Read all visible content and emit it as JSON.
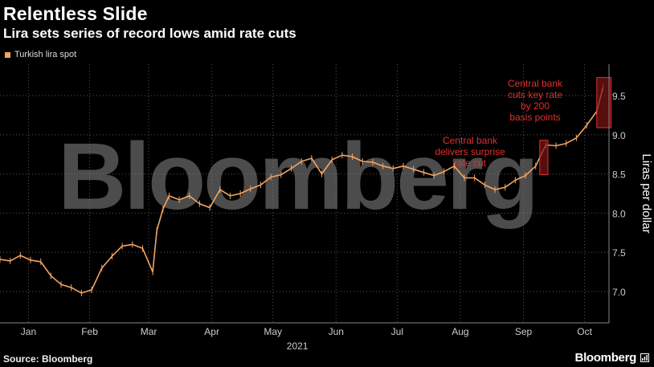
{
  "header": {
    "title": "Relentless Slide",
    "subtitle": "Lira sets series of record lows amid rate cuts"
  },
  "footer": {
    "source": "Source: Bloomberg",
    "brand": "Bloomberg",
    "brand_icon": "chart-window-icon"
  },
  "watermark": "Bloomberg",
  "colors": {
    "series": "#f4a460",
    "annotation": "#e03030",
    "annotation_fill": "#7a1414",
    "background": "#000000"
  },
  "chart_data": {
    "type": "line",
    "title": "Relentless Slide",
    "subtitle": "Lira sets series of record lows amid rate cuts",
    "ylabel": "Liras per dollar",
    "xlabel": "2021",
    "ylim": [
      6.6,
      9.9
    ],
    "yticks": [
      "7.0",
      "7.5",
      "8.0",
      "8.5",
      "9.0",
      "9.5"
    ],
    "y_axis_side": "right",
    "grid": true,
    "legend": "top-left",
    "x_range": [
      "2021-01-01",
      "2021-10-27"
    ],
    "xticks": [
      {
        "label": "Jan",
        "date": "2021-01-15"
      },
      {
        "label": "Feb",
        "date": "2021-02-14"
      },
      {
        "label": "Mar",
        "date": "2021-03-15"
      },
      {
        "label": "Apr",
        "date": "2021-04-15"
      },
      {
        "label": "May",
        "date": "2021-05-15"
      },
      {
        "label": "Jun",
        "date": "2021-06-15"
      },
      {
        "label": "Jul",
        "date": "2021-07-15"
      },
      {
        "label": "Aug",
        "date": "2021-08-15"
      },
      {
        "label": "Sep",
        "date": "2021-09-15"
      },
      {
        "label": "Oct",
        "date": "2021-10-15"
      }
    ],
    "series": [
      {
        "name": "Turkish lira spot",
        "x": [
          "2021-01-01",
          "2021-01-06",
          "2021-01-11",
          "2021-01-16",
          "2021-01-21",
          "2021-01-26",
          "2021-01-31",
          "2021-02-05",
          "2021-02-10",
          "2021-02-15",
          "2021-02-20",
          "2021-02-25",
          "2021-03-02",
          "2021-03-07",
          "2021-03-12",
          "2021-03-17",
          "2021-03-19",
          "2021-03-22",
          "2021-03-25",
          "2021-03-30",
          "2021-04-04",
          "2021-04-09",
          "2021-04-14",
          "2021-04-19",
          "2021-04-24",
          "2021-04-29",
          "2021-05-04",
          "2021-05-09",
          "2021-05-14",
          "2021-05-19",
          "2021-05-24",
          "2021-05-29",
          "2021-06-03",
          "2021-06-08",
          "2021-06-13",
          "2021-06-18",
          "2021-06-23",
          "2021-06-28",
          "2021-07-03",
          "2021-07-08",
          "2021-07-13",
          "2021-07-18",
          "2021-07-23",
          "2021-07-28",
          "2021-08-02",
          "2021-08-07",
          "2021-08-12",
          "2021-08-17",
          "2021-08-22",
          "2021-08-27",
          "2021-09-01",
          "2021-09-06",
          "2021-09-11",
          "2021-09-16",
          "2021-09-21",
          "2021-09-26",
          "2021-10-01",
          "2021-10-06",
          "2021-10-11",
          "2021-10-16",
          "2021-10-21",
          "2021-10-24"
        ],
        "values": [
          7.41,
          7.39,
          7.46,
          7.4,
          7.38,
          7.2,
          7.09,
          7.05,
          6.98,
          7.02,
          7.3,
          7.45,
          7.58,
          7.6,
          7.55,
          7.25,
          7.78,
          8.05,
          8.22,
          8.17,
          8.22,
          8.12,
          8.07,
          8.3,
          8.22,
          8.25,
          8.31,
          8.36,
          8.46,
          8.49,
          8.57,
          8.66,
          8.7,
          8.5,
          8.68,
          8.74,
          8.72,
          8.66,
          8.65,
          8.6,
          8.57,
          8.6,
          8.56,
          8.52,
          8.48,
          8.53,
          8.6,
          8.45,
          8.45,
          8.36,
          8.3,
          8.33,
          8.42,
          8.48,
          8.6,
          8.87,
          8.86,
          8.89,
          8.96,
          9.12,
          9.3,
          9.6
        ]
      }
    ],
    "annotations": [
      {
        "text": [
          "Central bank",
          "delivers surprise",
          "rate cut"
        ],
        "range": [
          "2021-09-23",
          "2021-09-27"
        ],
        "span": [
          8.49,
          8.93
        ]
      },
      {
        "text": [
          "Central bank",
          "cuts key rate",
          "by 200",
          "basis points"
        ],
        "range": [
          "2021-10-21",
          "2021-10-28"
        ],
        "span": [
          9.09,
          9.73
        ]
      }
    ]
  }
}
